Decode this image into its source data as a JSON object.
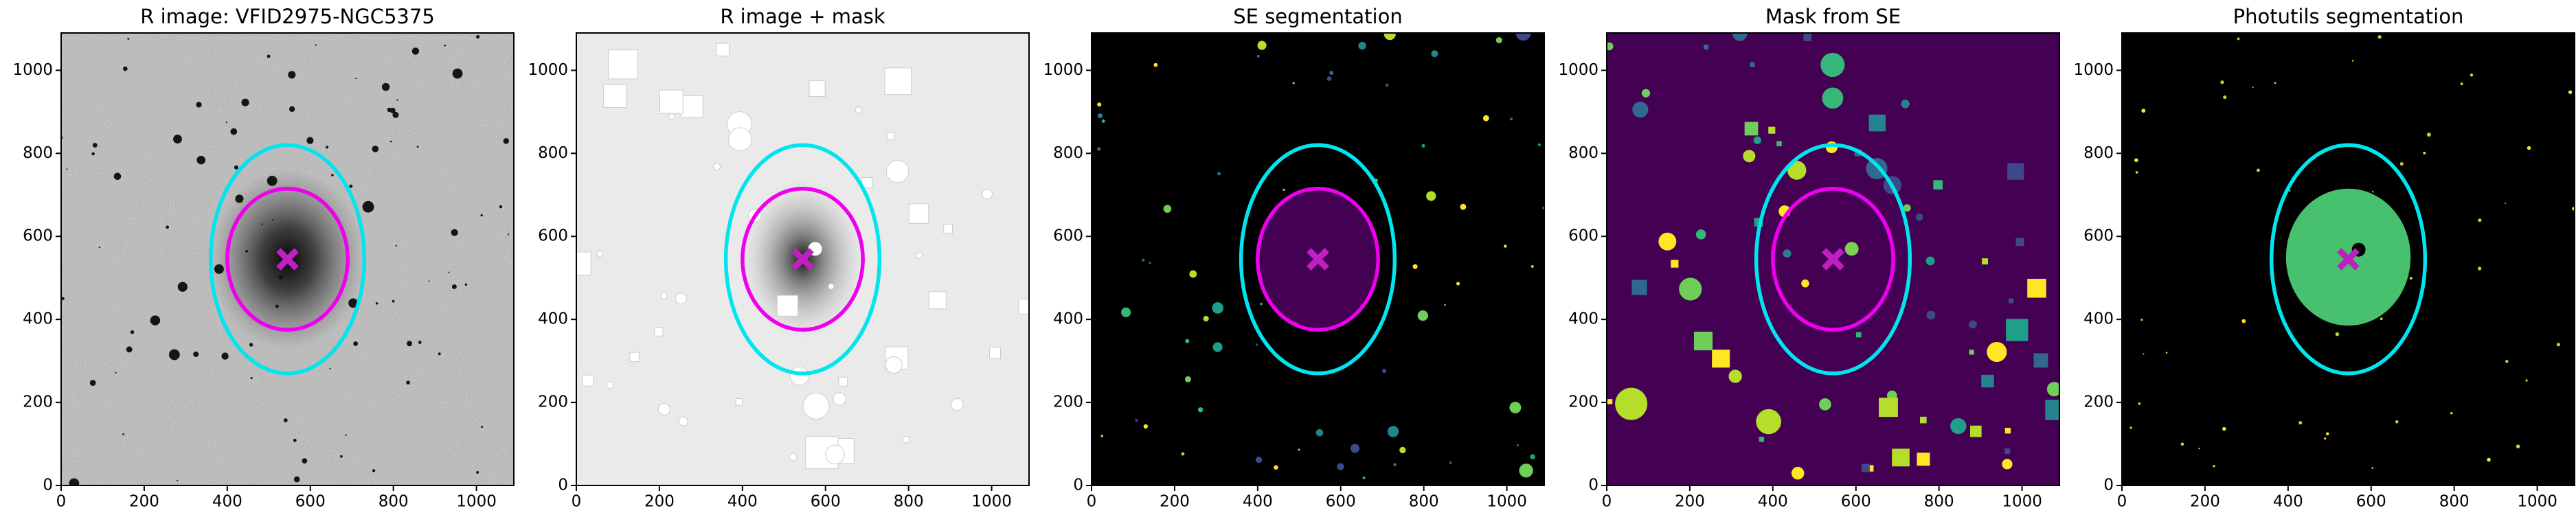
{
  "chart_data": [
    {
      "type": "image",
      "title": "R image: VFID2975-NGC5375",
      "cmap": "gray",
      "xlim": [
        0,
        1090
      ],
      "ylim": [
        0,
        1090
      ],
      "xticks": [
        0,
        200,
        400,
        600,
        800,
        1000
      ],
      "yticks": [
        0,
        200,
        400,
        600,
        800,
        1000
      ],
      "ellipses": [
        {
          "color": "#00e5ee",
          "x": 545,
          "y": 545,
          "rx": 185,
          "ry": 275
        },
        {
          "color": "#ee00ee",
          "x": 545,
          "y": 545,
          "rx": 145,
          "ry": 170
        }
      ],
      "marker": {
        "color": "#c020c0",
        "x": 545,
        "y": 545
      }
    },
    {
      "type": "image",
      "title": "R image + mask",
      "cmap": "gray_r",
      "xlim": [
        0,
        1090
      ],
      "ylim": [
        0,
        1090
      ],
      "xticks": [
        0,
        200,
        400,
        600,
        800,
        1000
      ],
      "yticks": [
        0,
        200,
        400,
        600,
        800,
        1000
      ],
      "ellipses": [
        {
          "color": "#00e5ee",
          "x": 545,
          "y": 545,
          "rx": 185,
          "ry": 275
        },
        {
          "color": "#ee00ee",
          "x": 545,
          "y": 545,
          "rx": 145,
          "ry": 170
        }
      ],
      "points": [
        {
          "color": "#ffffff",
          "x": 575,
          "y": 570
        }
      ],
      "marker": {
        "color": "#c020c0",
        "x": 545,
        "y": 545
      }
    },
    {
      "type": "image",
      "title": "SE segmentation",
      "cmap": "segmentation",
      "xlim": [
        0,
        1090
      ],
      "ylim": [
        0,
        1090
      ],
      "xticks": [
        0,
        200,
        400,
        600,
        800,
        1000
      ],
      "yticks": [
        0,
        200,
        400,
        600,
        800,
        1000
      ],
      "segments": [
        {
          "color": "#440154",
          "x": 545,
          "y": 545,
          "rx": 140,
          "ry": 165
        }
      ],
      "ellipses": [
        {
          "color": "#00e5ee",
          "x": 545,
          "y": 545,
          "rx": 185,
          "ry": 275
        },
        {
          "color": "#ee00ee",
          "x": 545,
          "y": 545,
          "rx": 145,
          "ry": 170
        }
      ],
      "marker": {
        "color": "#c020c0",
        "x": 545,
        "y": 545
      }
    },
    {
      "type": "image",
      "title": "Mask from SE",
      "cmap": "viridis",
      "xlim": [
        0,
        1090
      ],
      "ylim": [
        0,
        1090
      ],
      "xticks": [
        0,
        200,
        400,
        600,
        800,
        1000
      ],
      "yticks": [
        0,
        200,
        400,
        600,
        800,
        1000
      ],
      "ellipses": [
        {
          "color": "#00e5ee",
          "x": 545,
          "y": 545,
          "rx": 185,
          "ry": 275
        },
        {
          "color": "#ee00ee",
          "x": 545,
          "y": 545,
          "rx": 145,
          "ry": 170
        }
      ],
      "points": [
        {
          "color": "#7ad151",
          "x": 590,
          "y": 570
        }
      ],
      "marker": {
        "color": "#c020c0",
        "x": 545,
        "y": 545
      }
    },
    {
      "type": "image",
      "title": "Photutils segmentation",
      "cmap": "photutils",
      "xlim": [
        0,
        1090
      ],
      "ylim": [
        0,
        1090
      ],
      "xticks": [
        0,
        200,
        400,
        600,
        800,
        1000
      ],
      "yticks": [
        0,
        200,
        400,
        600,
        800,
        1000
      ],
      "segments": [
        {
          "color": "#48c16e",
          "x": 545,
          "y": 550,
          "rx": 150,
          "ry": 165
        }
      ],
      "ellipses": [
        {
          "color": "#00e5ee",
          "x": 545,
          "y": 545,
          "rx": 185,
          "ry": 275
        }
      ],
      "points": [
        {
          "color": "#000000",
          "x": 570,
          "y": 568
        }
      ],
      "marker": {
        "color": "#c020c0",
        "x": 545,
        "y": 545
      }
    }
  ]
}
